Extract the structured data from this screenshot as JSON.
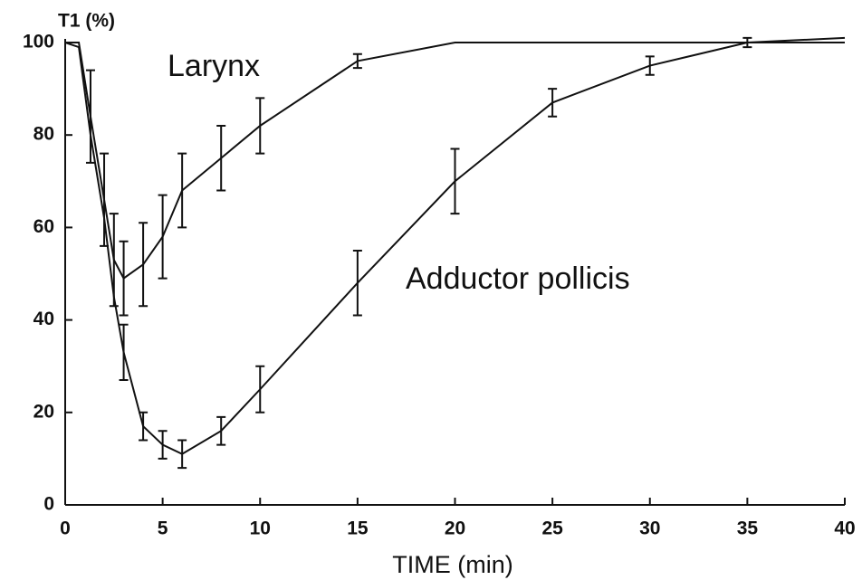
{
  "chart_data": {
    "type": "line",
    "ylabel": "T1 (%)",
    "xlabel": "TIME (min)",
    "annotations": [
      "Larynx",
      "Adductor pollicis"
    ],
    "series": [
      {
        "name": "Larynx",
        "color": "#111111",
        "x": [
          0,
          0.7,
          1.3,
          2,
          2.5,
          3,
          4,
          5,
          6,
          8,
          10,
          15,
          20,
          40
        ],
        "values": [
          100,
          100,
          84,
          66,
          53,
          49,
          52,
          58,
          68,
          75,
          82,
          96,
          100,
          100
        ],
        "errors": [
          null,
          null,
          10,
          10,
          10,
          8,
          9,
          9,
          8,
          7,
          6,
          1.5,
          null,
          null
        ]
      },
      {
        "name": "Adductor pollicis",
        "color": "#111111",
        "x": [
          0,
          0.7,
          1.3,
          2,
          2.5,
          3,
          4,
          5,
          6,
          8,
          10,
          15,
          20,
          25,
          30,
          35,
          40
        ],
        "values": [
          100,
          99,
          80,
          62,
          45,
          33,
          17,
          13,
          11,
          16,
          25,
          48,
          70,
          87,
          95,
          100,
          101
        ],
        "errors": [
          null,
          null,
          null,
          null,
          null,
          6,
          3,
          3,
          3,
          3,
          5,
          7,
          7,
          3,
          2,
          1,
          null
        ]
      }
    ],
    "xlim": [
      0,
      40
    ],
    "xticks": [
      0,
      5,
      10,
      15,
      20,
      25,
      30,
      35,
      40
    ],
    "ylim": [
      0,
      100
    ],
    "yticks": [
      0,
      20,
      40,
      60,
      80,
      100
    ]
  }
}
